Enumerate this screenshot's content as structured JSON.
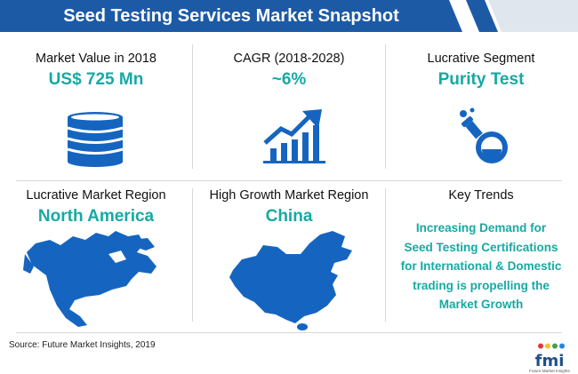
{
  "header": {
    "title": "Seed Testing Services Market Snapshot"
  },
  "colors": {
    "banner": "#1d5aa6",
    "accent": "#17a9a3",
    "icon": "#1565c0"
  },
  "metrics": [
    {
      "label": "Market Value in 2018",
      "value": "US$ 725 Mn",
      "icon": "coins-stack-icon"
    },
    {
      "label": "CAGR (2018-2028)",
      "value": "~6%",
      "icon": "growth-bar-chart-icon"
    },
    {
      "label": "Lucrative Segment",
      "value": "Purity Test",
      "icon": "flask-icon"
    },
    {
      "label": "Lucrative Market Region",
      "value": "North America",
      "icon": "north-america-map-icon"
    },
    {
      "label": "High Growth Market Region",
      "value": "China",
      "icon": "china-map-icon"
    }
  ],
  "key_trends": {
    "label": "Key Trends",
    "lines": [
      "Increasing Demand for",
      "Seed Testing Certifications",
      "for International & Domestic",
      "trading is propelling the",
      "Market Growth"
    ]
  },
  "footer": {
    "source": "Source: Future Market Insights, 2019"
  },
  "logo": {
    "word": "fmi",
    "tagline": "Future Market Insights"
  }
}
